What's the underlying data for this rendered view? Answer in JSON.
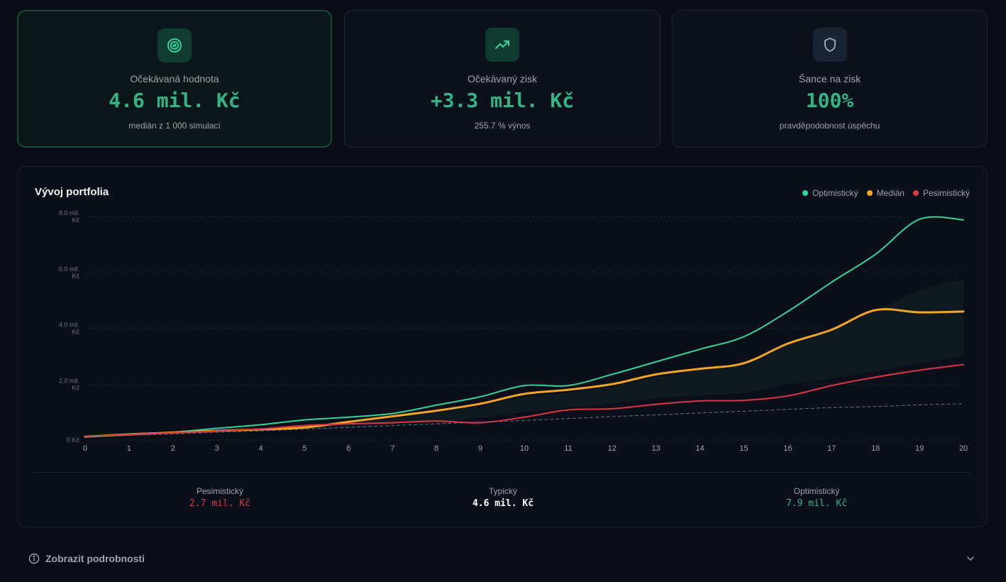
{
  "cards": [
    {
      "label": "Očekávaná hodnota",
      "value": "4.6 mil. Kč",
      "sub": "medián z 1 000 simulací",
      "icon": "target-icon"
    },
    {
      "label": "Očekávaný zisk",
      "value": "+3.3 mil. Kč",
      "sub": "255.7 % výnos",
      "icon": "trending-up-icon"
    },
    {
      "label": "Šance na zisk",
      "value": "100%",
      "sub": "pravděpodobnost úspěchu",
      "icon": "shield-icon"
    }
  ],
  "panel": {
    "title": "Vývoj portfolia",
    "legend": [
      {
        "name": "Optimistický",
        "color": "#34d399"
      },
      {
        "name": "Medián",
        "color": "#f5a524"
      },
      {
        "name": "Pesimistický",
        "color": "#dc3545"
      }
    ]
  },
  "summary": [
    {
      "label": "Pesimistický",
      "value": "2.7 mil. Kč",
      "color": "#dc3545"
    },
    {
      "label": "Typický",
      "value": "4.6 mil. Kč",
      "color": "#ffffff"
    },
    {
      "label": "Optimistický",
      "value": "7.9 mil. Kč",
      "color": "#34b386"
    }
  ],
  "details": {
    "label": "Zobrazit podrobnosti"
  },
  "chart_data": {
    "type": "line",
    "x": [
      0,
      1,
      2,
      3,
      4,
      5,
      6,
      7,
      8,
      9,
      10,
      11,
      12,
      13,
      14,
      15,
      16,
      17,
      18,
      19,
      20
    ],
    "y_ticks": [
      {
        "value": 0,
        "label": [
          "0 Kč"
        ]
      },
      {
        "value": 2,
        "label": [
          "2.0 mil.",
          "Kč"
        ]
      },
      {
        "value": 4,
        "label": [
          "4.0 mil.",
          "Kč"
        ]
      },
      {
        "value": 6,
        "label": [
          "6.0 mil.",
          "Kč"
        ]
      },
      {
        "value": 8,
        "label": [
          "8.0 mil.",
          "Kč"
        ]
      }
    ],
    "ylim": [
      0,
      8
    ],
    "grid": true,
    "series": [
      {
        "name": "Optimistický",
        "color": "#34d399",
        "values": [
          0.12,
          0.22,
          0.28,
          0.42,
          0.55,
          0.72,
          0.82,
          0.95,
          1.25,
          1.55,
          1.95,
          1.95,
          2.35,
          2.8,
          3.25,
          3.7,
          4.6,
          5.65,
          6.65,
          7.9,
          7.88
        ]
      },
      {
        "name": "Medián",
        "color": "#f5a524",
        "values": [
          0.12,
          0.2,
          0.27,
          0.33,
          0.38,
          0.45,
          0.65,
          0.85,
          1.05,
          1.3,
          1.65,
          1.8,
          2.0,
          2.35,
          2.55,
          2.75,
          3.45,
          3.95,
          4.65,
          4.57,
          4.6
        ]
      },
      {
        "name": "Pesimistický",
        "color": "#dc3545",
        "values": [
          0.12,
          0.2,
          0.26,
          0.32,
          0.4,
          0.52,
          0.58,
          0.62,
          0.68,
          0.62,
          0.82,
          1.08,
          1.12,
          1.28,
          1.4,
          1.42,
          1.58,
          1.95,
          2.25,
          2.5,
          2.7
        ]
      },
      {
        "values": [
          0.12,
          0.17,
          0.22,
          0.28,
          0.33,
          0.39,
          0.45,
          0.52,
          0.58,
          0.64,
          0.7,
          0.77,
          0.84,
          0.9,
          0.97,
          1.03,
          1.1,
          1.16,
          1.2,
          1.26,
          1.3
        ]
      }
    ],
    "band": {
      "upper": [
        0.12,
        0.22,
        0.28,
        0.36,
        0.42,
        0.5,
        0.62,
        0.78,
        0.98,
        1.22,
        1.55,
        1.7,
        1.92,
        2.25,
        2.5,
        2.8,
        3.4,
        3.95,
        4.6,
        5.35,
        5.75
      ],
      "lower": [
        0.12,
        0.18,
        0.24,
        0.3,
        0.34,
        0.38,
        0.45,
        0.55,
        0.65,
        0.8,
        1.0,
        1.15,
        1.3,
        1.5,
        1.6,
        1.7,
        2.0,
        2.2,
        2.45,
        2.75,
        3.0
      ]
    }
  }
}
